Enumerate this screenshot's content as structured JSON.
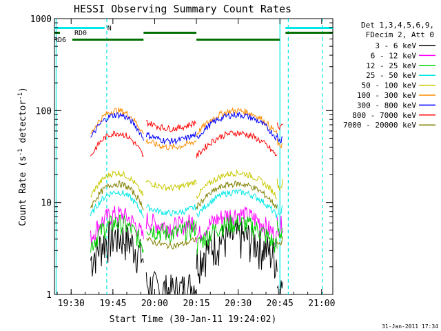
{
  "chart_data": {
    "type": "line",
    "title": "HESSI Observing Summary Count Rates",
    "xlabel": "Start Time (30-Jan-11 19:24:02)",
    "ylabel_main": "Count Rate (s",
    "ylabel_sup1": "-1",
    "ylabel_mid": " detector",
    "ylabel_sup2": "-1",
    "ylabel_end": ")",
    "y_scale": "log",
    "ylim": [
      1,
      1000
    ],
    "xlim": [
      "19:24",
      "21:04"
    ],
    "x_ticks": [
      "19:30",
      "19:45",
      "20:00",
      "20:15",
      "20:30",
      "20:45",
      "21:00"
    ],
    "y_ticks": [
      "1",
      "10",
      "100",
      "1000"
    ],
    "timestamp": "31-Jan-2011 17:34",
    "legend_header": [
      "Det 1,3,4,5,6,9,",
      "FDecim 2, Att 0"
    ],
    "series": [
      {
        "name": "3 - 6 keV",
        "color": "#000000",
        "day": 4.3,
        "night": 1.3
      },
      {
        "name": "6 - 12 keV",
        "color": "#ff00ff",
        "day": 7.5,
        "night": 6.5
      },
      {
        "name": "12 - 25 keV",
        "color": "#00d000",
        "day": 6.0,
        "night": 5.5
      },
      {
        "name": "25 - 50 keV",
        "color": "#00e8e8",
        "day": 13,
        "night": 9
      },
      {
        "name": "50 - 100 keV",
        "color": "#c8c800",
        "day": 21,
        "night": 17
      },
      {
        "name": "100 - 300 keV",
        "color": "#ff8c00",
        "day": 100,
        "night": 47
      },
      {
        "name": "300 - 800 keV",
        "color": "#0000ff",
        "day": 90,
        "night": 55
      },
      {
        "name": "800 - 7000 keV",
        "color": "#ff0000",
        "day": 57,
        "night": 75
      },
      {
        "name": "7000 - 20000 keV",
        "color": "#808000",
        "day": 16,
        "night": 4
      }
    ],
    "flags": [
      {
        "name": "N",
        "color": "#00e8e8"
      },
      {
        "name": "RD0",
        "color": "#007000"
      },
      {
        "name": "RD6",
        "color": "#007000"
      }
    ],
    "grid": false,
    "legend_position": "right"
  }
}
